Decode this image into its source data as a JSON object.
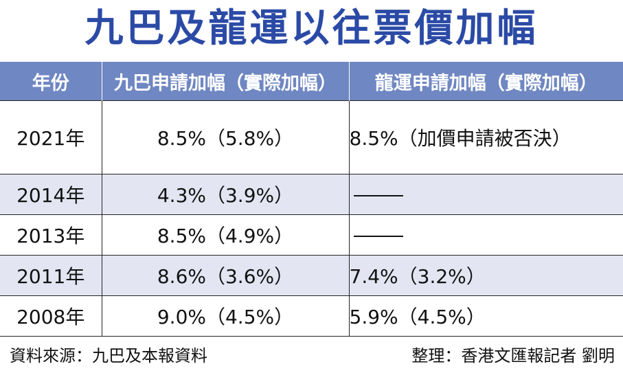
{
  "title": "九巴及龍運以往票價加幅",
  "headers": {
    "year": "年份",
    "kmb": "九巴申請加幅（實際加幅）",
    "lw": "龍運申請加幅（實際加幅）"
  },
  "rows": [
    {
      "year": "2021年",
      "kmb": "8.5%（5.8%）",
      "lw": "8.5%（加價申請被否決）"
    },
    {
      "year": "2014年",
      "kmb": "4.3%（3.9%）",
      "lw": ""
    },
    {
      "year": "2013年",
      "kmb": "8.5%（4.9%）",
      "lw": ""
    },
    {
      "year": "2011年",
      "kmb": "8.6%（3.6%）",
      "lw": "7.4%（3.2%）"
    },
    {
      "year": "2008年",
      "kmb": "9.0%（4.5%）",
      "lw": "5.9%（4.5%）"
    }
  ],
  "footer": {
    "source": "資料來源：九巴及本報資料",
    "editor": "整理：香港文匯報記者 劉明"
  },
  "colors": {
    "title": "#2b4aa6",
    "header_bg": "#6f87c2",
    "shade_bg": "#e3e6f2"
  }
}
